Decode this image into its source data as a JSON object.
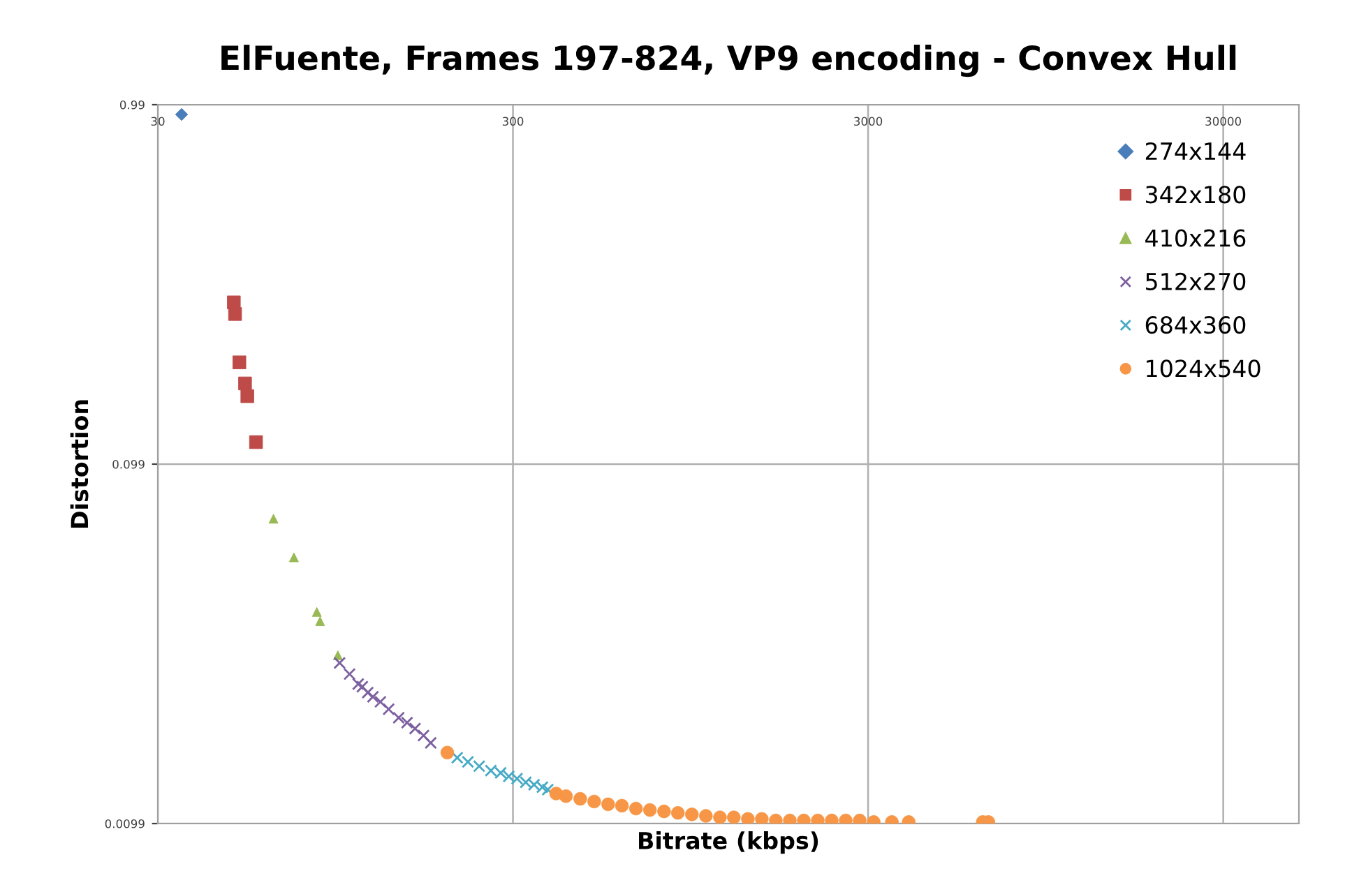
{
  "chart_data": {
    "type": "scatter",
    "title": "ElFuente, Frames 197-824, VP9 encoding - Convex Hull",
    "xlabel": "Bitrate (kbps)",
    "ylabel": "Distortion",
    "log": "xy",
    "xlim": [
      30,
      49000
    ],
    "xticks": [
      30,
      300,
      3000,
      30000
    ],
    "ylim": [
      0.0099,
      0.99
    ],
    "yticks": [
      0.0099,
      0.099,
      0.99
    ],
    "grid": true,
    "legend": "top right",
    "series": [
      {
        "name": "274x144",
        "color": "#4a7ebb",
        "marker": "diamond",
        "x": [
          35.0
        ],
        "values": [
          0.93
        ]
      },
      {
        "name": "342x180",
        "color": "#be4b48",
        "marker": "square",
        "x": [
          49.1,
          49.5,
          50.9,
          52.8,
          53.6,
          56.7
        ],
        "values": [
          0.279,
          0.259,
          0.19,
          0.166,
          0.153,
          0.114
        ]
      },
      {
        "name": "410x216",
        "color": "#98b954",
        "marker": "triangle",
        "x": [
          63.5,
          72.5,
          84.1,
          85.9,
          96.4
        ],
        "values": [
          0.0698,
          0.0545,
          0.0384,
          0.0362,
          0.0291
        ]
      },
      {
        "name": "512x270",
        "color": "#7d60a0",
        "marker": "cross",
        "x": [
          97.5,
          104,
          110,
          113,
          117,
          121,
          127,
          134,
          143,
          151,
          159,
          168,
          176
        ],
        "values": [
          0.0277,
          0.0258,
          0.0242,
          0.0238,
          0.0229,
          0.0223,
          0.0216,
          0.0206,
          0.0195,
          0.0189,
          0.0182,
          0.0174,
          0.0166
        ]
      },
      {
        "name": "684x360",
        "color": "#46aac5",
        "marker": "cross",
        "x": [
          209,
          224,
          241,
          260,
          277,
          292,
          308,
          326,
          344,
          363,
          376
        ],
        "values": [
          0.0151,
          0.0147,
          0.0143,
          0.0139,
          0.0137,
          0.0134,
          0.0132,
          0.0129,
          0.0127,
          0.0125,
          0.0123
        ]
      },
      {
        "name": "1024x540",
        "color": "#f79646",
        "marker": "circle",
        "x": [
          196,
          397,
          423,
          464,
          508,
          556,
          608,
          666,
          729,
          799,
          874,
          957,
          1048,
          1148,
          1256,
          1376,
          1506,
          1649,
          1806,
          1977,
          2165,
          2370,
          2595,
          2841,
          3111,
          3500,
          3903,
          6310,
          6543
        ],
        "values": [
          0.0156,
          0.012,
          0.0118,
          0.0116,
          0.0114,
          0.0112,
          0.0111,
          0.0109,
          0.0108,
          0.0107,
          0.0106,
          0.0105,
          0.0104,
          0.0103,
          0.0103,
          0.0102,
          0.0102,
          0.0101,
          0.0101,
          0.0101,
          0.0101,
          0.0101,
          0.0101,
          0.0101,
          0.01,
          0.01,
          0.01,
          0.01,
          0.01
        ]
      }
    ]
  }
}
